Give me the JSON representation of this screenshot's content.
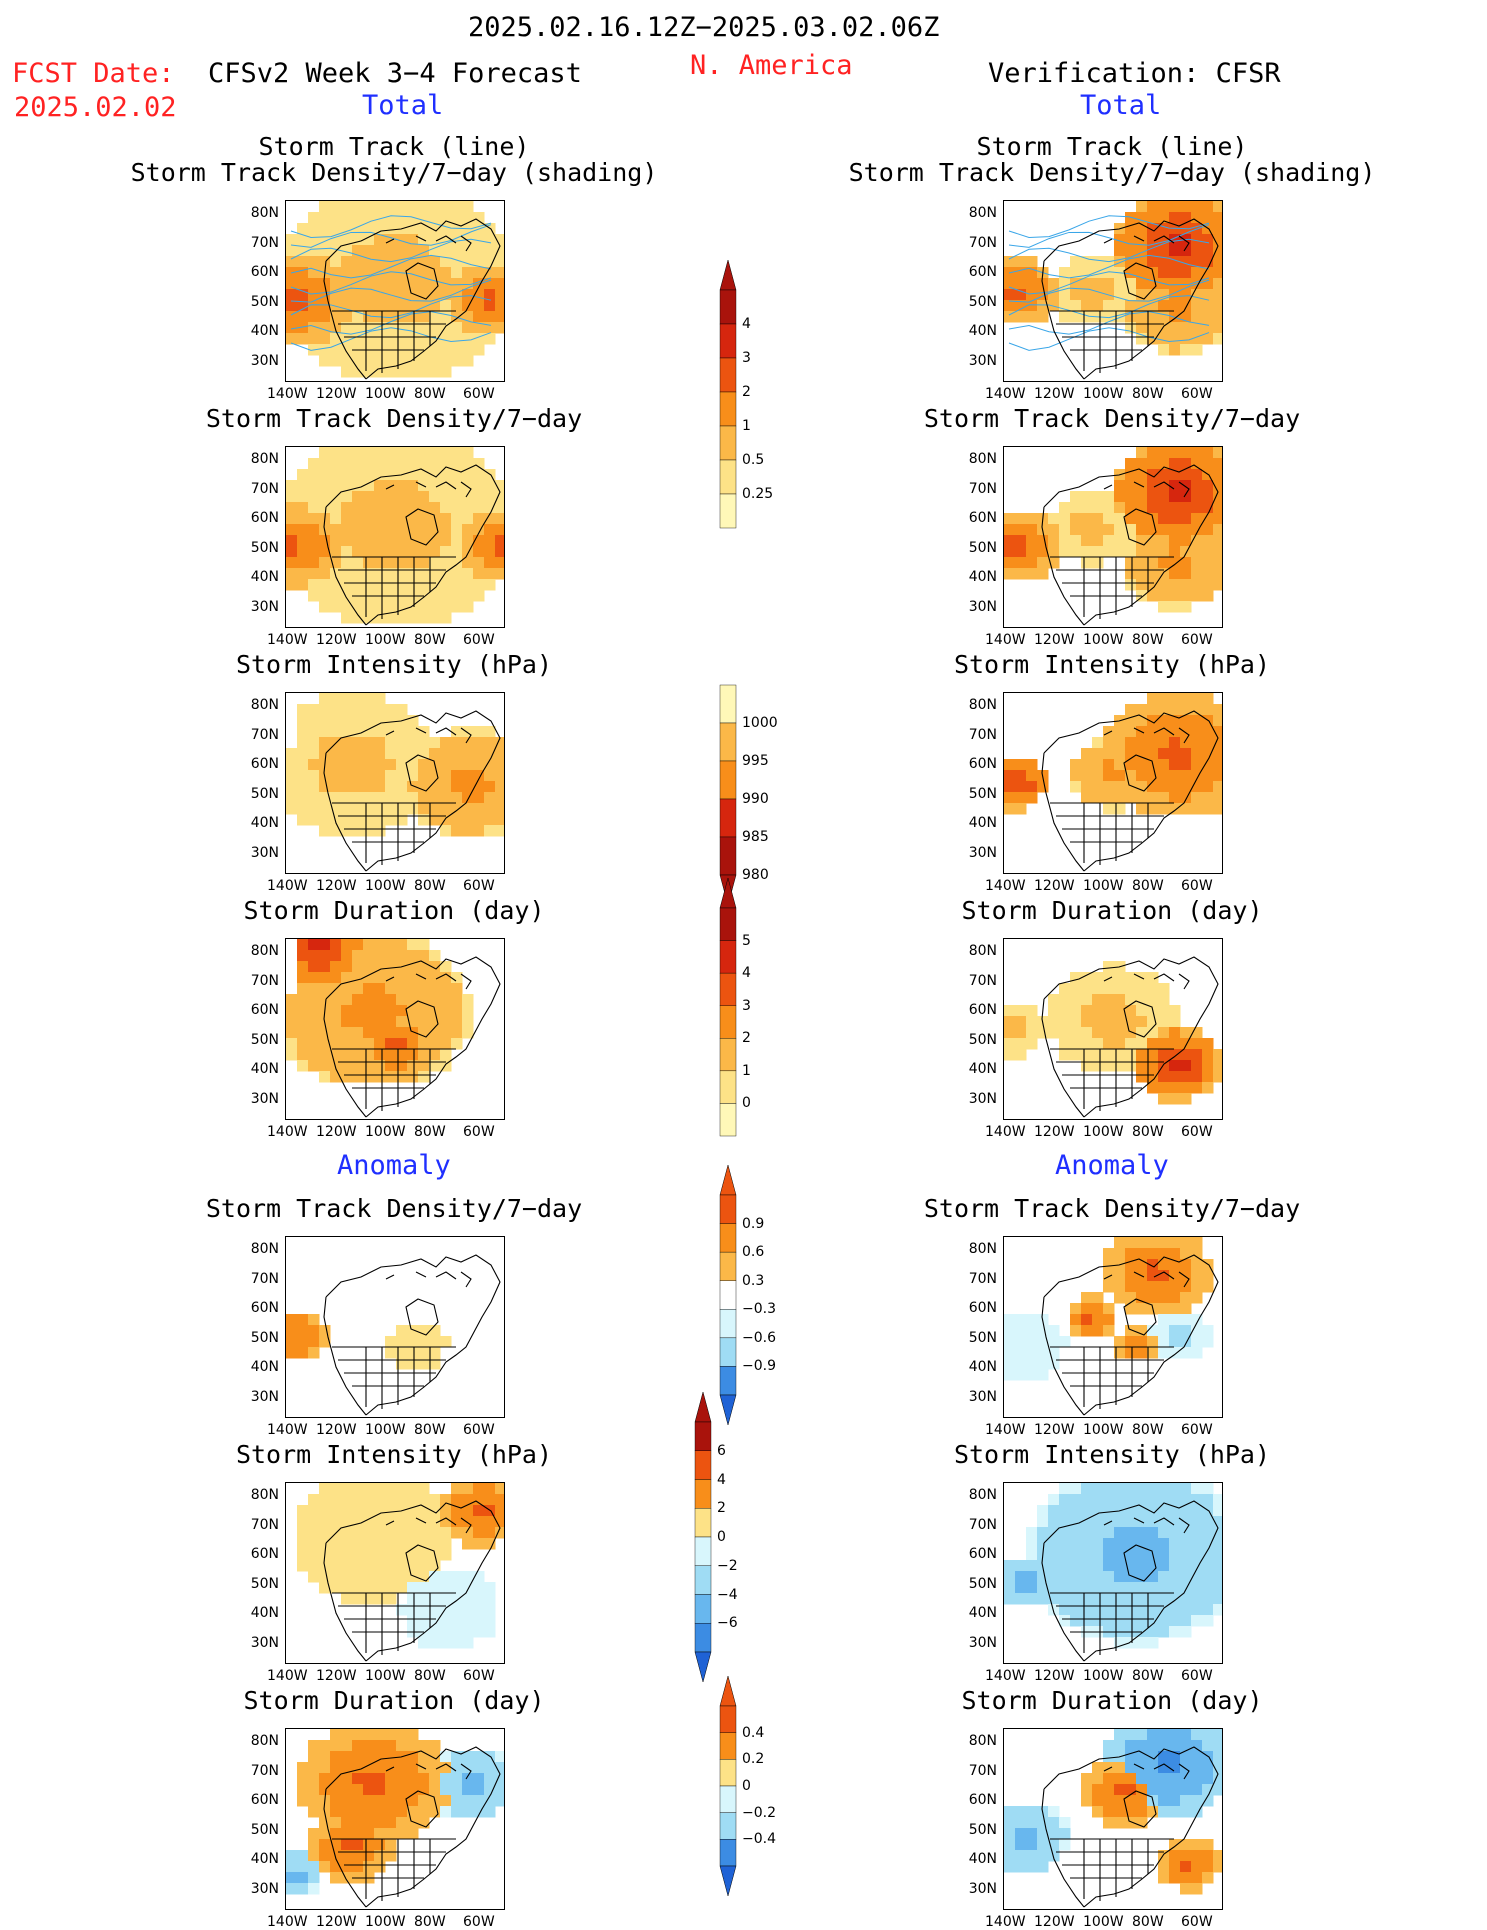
{
  "header": {
    "period": "2025.02.16.12Z−2025.03.02.06Z",
    "fcst_label": "FCST Date:",
    "fcst_date": "2025.02.02",
    "model": "CFSv2 Week 3−4 Forecast",
    "region": "N. America",
    "verification": "Verification: CFSR"
  },
  "sections": {
    "total": "Total",
    "anomaly": "Anomaly"
  },
  "panel_titles": {
    "track_line": "Storm Track (line)",
    "track_density_shading": "Storm Track Density/7−day (shading)",
    "track_density": "Storm Track Density/7−day",
    "intensity": "Storm Intensity (hPa)",
    "duration": "Storm Duration (day)"
  },
  "map_axes": {
    "lat_labels": [
      "80N",
      "70N",
      "60N",
      "50N",
      "40N",
      "30N"
    ],
    "lon_labels": [
      "140W",
      "120W",
      "100W",
      "80W",
      "60W"
    ]
  },
  "colorbars": {
    "density_total": [
      "4",
      "3",
      "2",
      "1",
      "0.5",
      "0.25"
    ],
    "intensity_total": [
      "1000",
      "995",
      "990",
      "985",
      "980"
    ],
    "duration_total": [
      "5",
      "4",
      "3",
      "2",
      "1",
      "0"
    ],
    "density_anom": [
      "0.9",
      "0.6",
      "0.3",
      "−0.3",
      "−0.6",
      "−0.9"
    ],
    "intensity_anom": [
      "6",
      "4",
      "2",
      "0",
      "−2",
      "−4",
      "−6"
    ],
    "duration_anom": [
      "0.4",
      "0.2",
      "0",
      "−0.2",
      "−0.4"
    ]
  },
  "colors": {
    "warm": [
      "#fff8b8",
      "#fde287",
      "#fbb848",
      "#f88e1a",
      "#ec5410",
      "#d6260e",
      "#a9130c"
    ],
    "cool": [
      "#d8f6fc",
      "#9fdcf4",
      "#68b7ee",
      "#3c8ce3",
      "#1f62d5"
    ],
    "track_line": "#3aa6e8",
    "title_red": "#ff2222",
    "section_blue": "#1f2fff"
  }
}
